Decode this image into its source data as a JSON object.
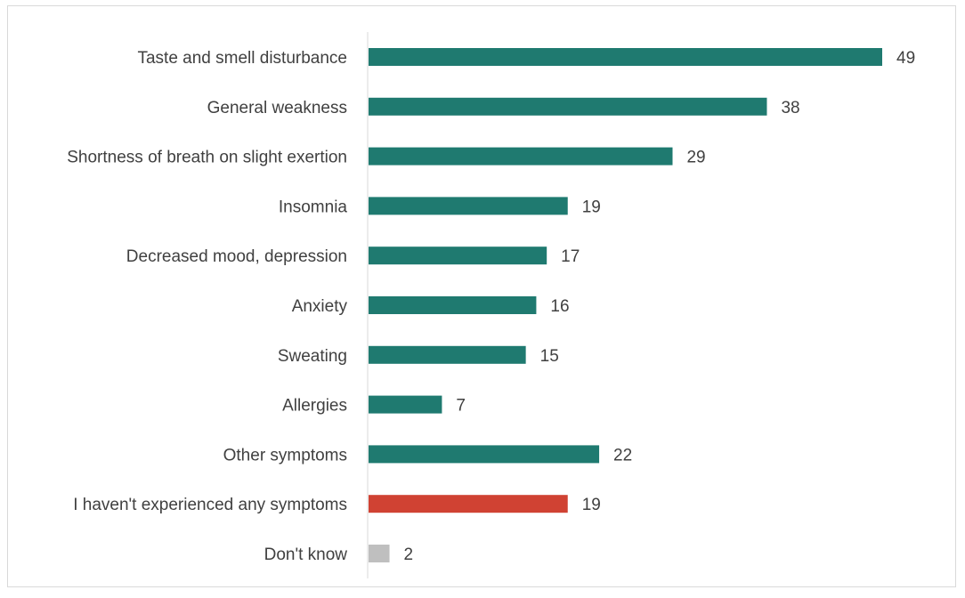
{
  "chart_data": {
    "type": "bar",
    "orientation": "horizontal",
    "title": "",
    "xlabel": "",
    "ylabel": "",
    "grid": false,
    "legend": "none",
    "xlim": [
      0,
      52
    ],
    "categories": [
      "Taste and smell disturbance",
      "General weakness",
      "Shortness of breath on slight exertion",
      "Insomnia",
      "Decreased mood, depression",
      "Anxiety",
      "Sweating",
      "Allergies",
      "Other symptoms",
      "I haven't experienced any symptoms",
      "Don't know"
    ],
    "values": [
      49,
      38,
      29,
      19,
      17,
      16,
      15,
      7,
      22,
      19,
      2
    ],
    "value_labels": [
      "49",
      "38",
      "29",
      "19",
      "17",
      "16",
      "15",
      "7",
      "22",
      "19",
      "2"
    ],
    "bar_colors": [
      "#1f7a70",
      "#1f7a70",
      "#1f7a70",
      "#1f7a70",
      "#1f7a70",
      "#1f7a70",
      "#1f7a70",
      "#1f7a70",
      "#1f7a70",
      "#d04233",
      "#bfbfbf"
    ],
    "axis_color": "#d9d9d9",
    "text_color": "#404040"
  }
}
